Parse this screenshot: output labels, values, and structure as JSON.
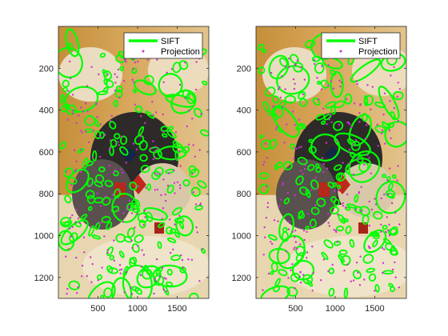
{
  "figure": {
    "background": "#ffffff"
  },
  "chart_data": [
    {
      "type": "scatter",
      "panel": "left",
      "title": "",
      "xlabel": "",
      "ylabel": "",
      "xlim": [
        0,
        1900
      ],
      "ylim": [
        1300,
        0
      ],
      "y_reversed": true,
      "xticks": [
        500,
        1000,
        1500
      ],
      "yticks": [
        200,
        400,
        600,
        800,
        1000,
        1200
      ],
      "legend": {
        "placement": "top-right",
        "entries": [
          {
            "label": "SIFT",
            "style": "line",
            "color": "#00ff00"
          },
          {
            "label": "Projection",
            "style": "dot",
            "color": "#cc33cc"
          }
        ]
      },
      "series": [
        {
          "name": "SIFT",
          "marker": "ellipse",
          "color": "#00ff00"
        },
        {
          "name": "Projection",
          "marker": "dot",
          "color": "#cc33cc"
        }
      ]
    },
    {
      "type": "scatter",
      "panel": "right",
      "title": "",
      "xlabel": "",
      "ylabel": "",
      "xlim": [
        0,
        1900
      ],
      "ylim": [
        1300,
        0
      ],
      "y_reversed": true,
      "xticks": [
        500,
        1000,
        1500
      ],
      "yticks": [
        200,
        400,
        600,
        800,
        1000,
        1200
      ],
      "legend": {
        "placement": "top-right",
        "entries": [
          {
            "label": "SIFT",
            "style": "line",
            "color": "#00ff00"
          },
          {
            "label": "Projection",
            "style": "dot",
            "color": "#cc33cc"
          }
        ]
      },
      "series": [
        {
          "name": "SIFT",
          "marker": "ellipse",
          "color": "#00ff00"
        },
        {
          "name": "Projection",
          "marker": "dot",
          "color": "#cc33cc"
        }
      ]
    }
  ]
}
